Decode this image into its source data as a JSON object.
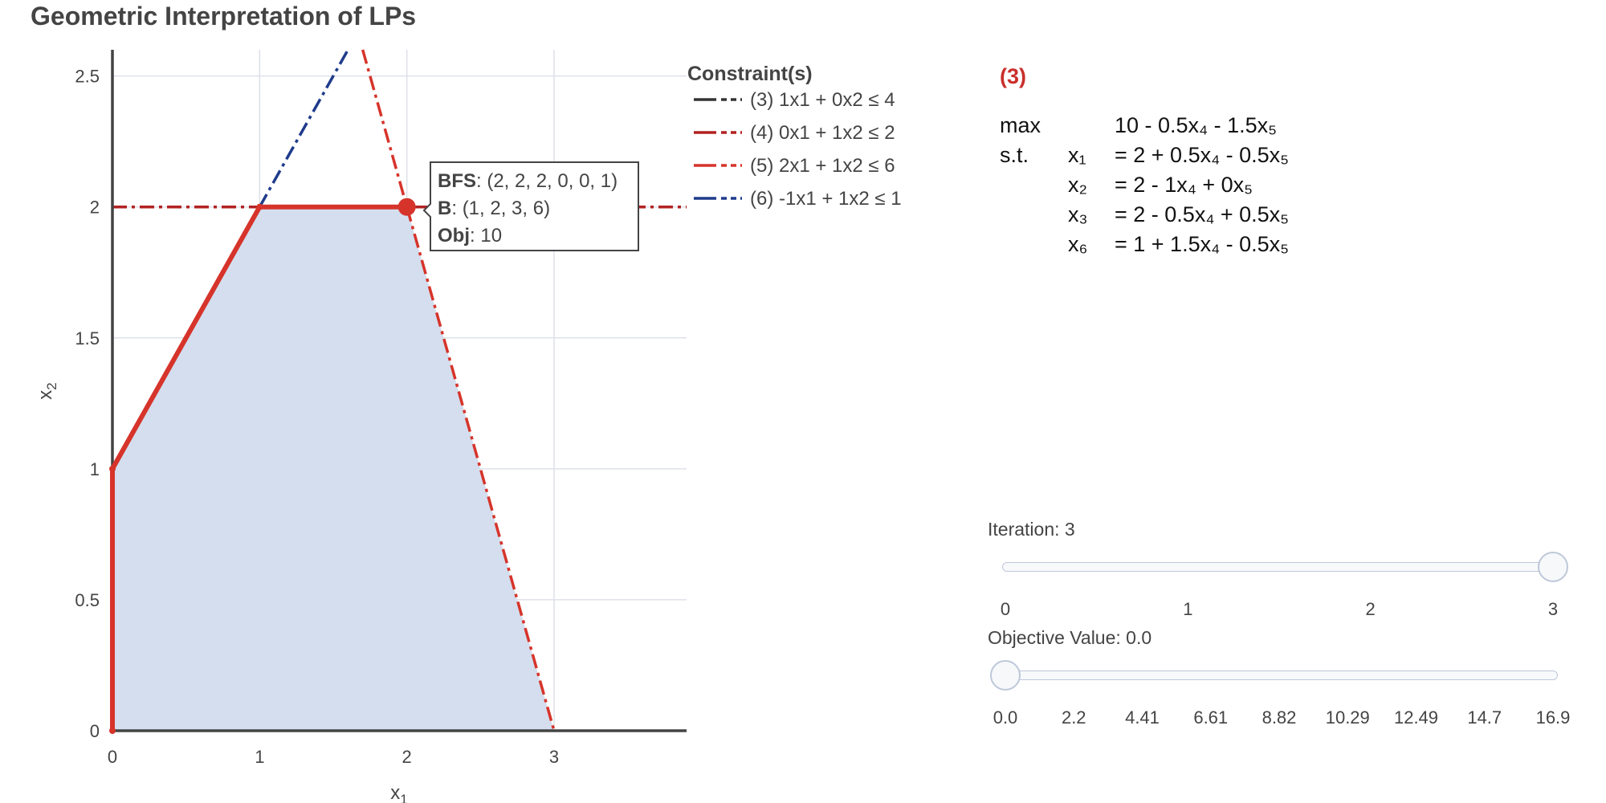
{
  "title": "Geometric Interpretation of LPs",
  "chart_data": {
    "type": "line",
    "xlabel": "x1",
    "ylabel": "x2",
    "xlim": [
      0,
      3.9
    ],
    "ylim": [
      0,
      2.6
    ],
    "x_ticks": [
      "0",
      "1",
      "2",
      "3"
    ],
    "y_ticks": [
      "0",
      "0.5",
      "1",
      "1.5",
      "2",
      "2.5"
    ],
    "grid": true,
    "feasible_region": [
      [
        0,
        0
      ],
      [
        0,
        1
      ],
      [
        1,
        2
      ],
      [
        2,
        2
      ],
      [
        3,
        0
      ]
    ],
    "path": [
      [
        0,
        0
      ],
      [
        0,
        1
      ],
      [
        1,
        2
      ],
      [
        2,
        2
      ]
    ],
    "current_point": [
      2,
      2
    ],
    "legend": {
      "title": "Constraint(s)",
      "placement": "top-right",
      "entries": [
        {
          "label": "(3) 1x1 + 0x2 ≤ 4",
          "color": "#333333"
        },
        {
          "label": "(4) 0x1 + 1x2 ≤ 2",
          "color": "#b22222"
        },
        {
          "label": "(5) 2x1 + 1x2 ≤ 6",
          "color": "#d6342b"
        },
        {
          "label": "(6) -1x1 + 1x2 ≤ 1",
          "color": "#1f3b8c"
        }
      ]
    },
    "constraint_lines": [
      {
        "id": "c4",
        "color": "#b22222",
        "from": [
          0,
          2
        ],
        "to": [
          3.9,
          2
        ]
      },
      {
        "id": "c5",
        "color": "#d6342b",
        "from": [
          1.7,
          2.6
        ],
        "to": [
          3,
          0
        ]
      },
      {
        "id": "c6",
        "color": "#1f3b8c",
        "from": [
          1,
          2
        ],
        "to": [
          1.6,
          2.6
        ]
      }
    ],
    "hover": {
      "bfs_key": "BFS",
      "bfs": "(2, 2, 2, 0, 0, 1)",
      "basis_key": "B",
      "basis": "(1, 2, 3, 6)",
      "obj_key": "Obj",
      "obj": "10"
    }
  },
  "tableau": {
    "label": "(3)",
    "rows": [
      {
        "c1": "max",
        "c2": "",
        "c3": "10 - 0.5x₄ - 1.5x₅"
      },
      {
        "c1": "s.t.",
        "c2": "x₁",
        "c3": "= 2 + 0.5x₄ - 0.5x₅"
      },
      {
        "c1": "",
        "c2": "x₂",
        "c3": "= 2 - 1x₄ + 0x₅"
      },
      {
        "c1": "",
        "c2": "x₃",
        "c3": "= 2 - 0.5x₄ + 0.5x₅"
      },
      {
        "c1": "",
        "c2": "x₆",
        "c3": "= 1 + 1.5x₄ - 0.5x₅"
      }
    ]
  },
  "iteration_slider": {
    "label": "Iteration: 3",
    "value": 3,
    "min": 0,
    "max": 3,
    "ticks": [
      "0",
      "1",
      "2",
      "3"
    ]
  },
  "objective_slider": {
    "label": "Objective Value: 0.0",
    "value": 0.0,
    "ticks": [
      "0.0",
      "2.2",
      "4.41",
      "6.61",
      "8.82",
      "10.29",
      "12.49",
      "14.7",
      "16.9"
    ]
  }
}
